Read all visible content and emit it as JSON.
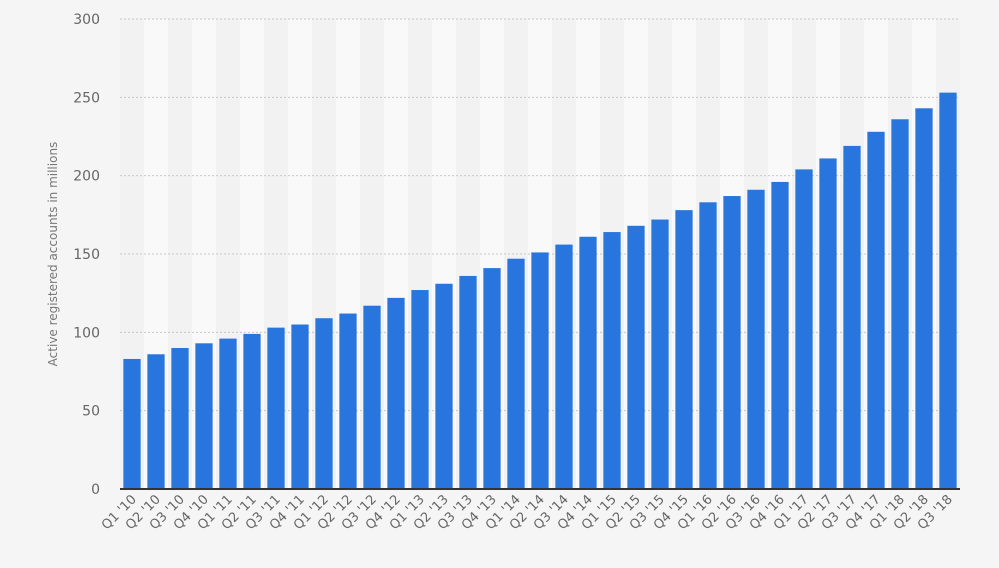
{
  "chart_data": {
    "type": "bar",
    "title": "",
    "xlabel": "",
    "ylabel": "Active registered accounts in millions",
    "ylim": [
      0,
      300
    ],
    "yticks": [
      0,
      50,
      100,
      150,
      200,
      250,
      300
    ],
    "grid": true,
    "legend": "none",
    "bar_color": "#2876dd",
    "categories": [
      "Q1 '10",
      "Q2 '10",
      "Q3 '10",
      "Q4 '10",
      "Q1 '11",
      "Q2 '11",
      "Q3 '11",
      "Q4 '11",
      "Q1 '12",
      "Q2 '12",
      "Q3 '12",
      "Q4 '12",
      "Q1 '13",
      "Q2 '13",
      "Q3 '13",
      "Q4 '13",
      "Q1 '14",
      "Q2 '14",
      "Q3 '14",
      "Q4 '14",
      "Q1 '15",
      "Q2 '15",
      "Q3 '15",
      "Q4 '15",
      "Q1 '16",
      "Q2 '16",
      "Q3 '16",
      "Q4 '16",
      "Q1 '17",
      "Q2 '17",
      "Q3 '17",
      "Q4 '17",
      "Q1 '18",
      "Q2 '18",
      "Q3 '18"
    ],
    "values": [
      83,
      86,
      90,
      93,
      96,
      99,
      103,
      105,
      109,
      112,
      117,
      122,
      127,
      131,
      136,
      141,
      147,
      151,
      156,
      161,
      164,
      168,
      172,
      178,
      183,
      187,
      191,
      196,
      204,
      211,
      219,
      228,
      236,
      243,
      253
    ]
  }
}
